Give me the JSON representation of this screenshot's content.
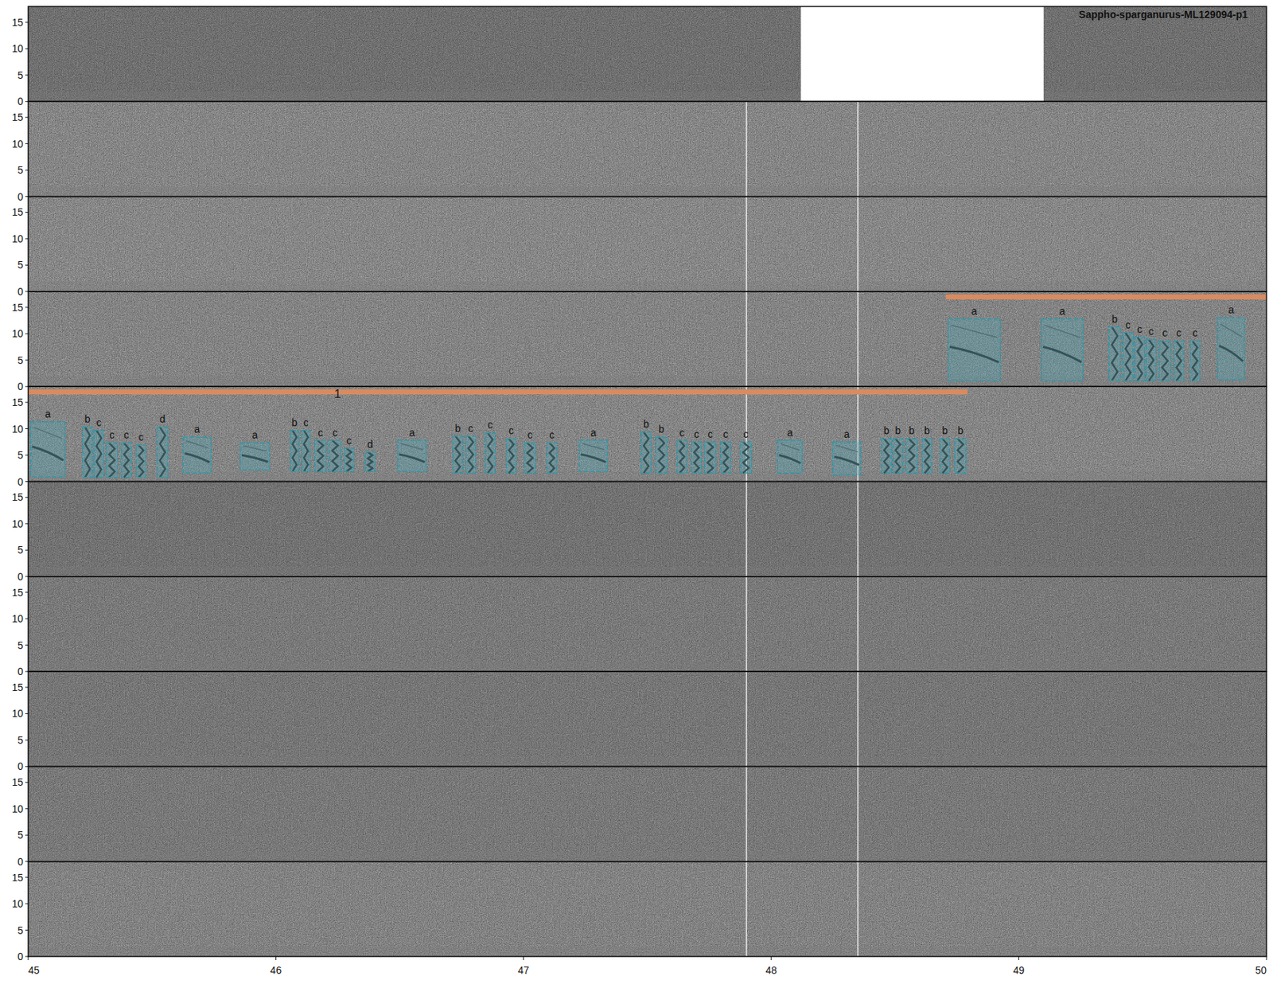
{
  "chart_data": {
    "type": "spectrogram",
    "title": "Sappho-sparganurus-ML129094-p1",
    "rows": 10,
    "xlim": [
      45,
      50
    ],
    "xticks": [
      45,
      46,
      47,
      48,
      49,
      50
    ],
    "ylim": [
      0,
      18
    ],
    "yticks": [
      0,
      5,
      10,
      15
    ],
    "gaps": [
      {
        "row": 0,
        "start": 48.12,
        "end": 49.1
      }
    ],
    "markers": [
      47.9,
      48.35
    ],
    "segments": [
      {
        "label": "1",
        "color": "#d98b5f",
        "pieces": [
          {
            "row": 3,
            "start": 48.705,
            "end": 50
          },
          {
            "row": 4,
            "start": 45,
            "end": 48.793
          }
        ]
      }
    ],
    "annotations": [
      {
        "row": 3,
        "label": "a",
        "start": 48.715,
        "end": 48.925,
        "low": 1.1,
        "high": 12.8
      },
      {
        "row": 3,
        "label": "a",
        "start": 49.092,
        "end": 49.259,
        "low": 1.1,
        "high": 12.8
      },
      {
        "row": 3,
        "label": "b",
        "start": 49.364,
        "end": 49.41,
        "low": 1.1,
        "high": 11.3
      },
      {
        "row": 3,
        "label": "c",
        "start": 49.42,
        "end": 49.462,
        "low": 1.1,
        "high": 10.2
      },
      {
        "row": 3,
        "label": "c",
        "start": 49.469,
        "end": 49.508,
        "low": 1.1,
        "high": 9.4
      },
      {
        "row": 3,
        "label": "c",
        "start": 49.515,
        "end": 49.554,
        "low": 1.1,
        "high": 8.9
      },
      {
        "row": 3,
        "label": "c",
        "start": 49.567,
        "end": 49.613,
        "low": 1.1,
        "high": 8.6
      },
      {
        "row": 3,
        "label": "c",
        "start": 49.626,
        "end": 49.666,
        "low": 1.1,
        "high": 8.6
      },
      {
        "row": 3,
        "label": "c",
        "start": 49.692,
        "end": 49.731,
        "low": 1.1,
        "high": 8.6
      },
      {
        "row": 3,
        "label": "a",
        "start": 49.803,
        "end": 49.911,
        "low": 1.25,
        "high": 13.0
      },
      {
        "row": 4,
        "label": "a",
        "start": 45.01,
        "end": 45.148,
        "low": 0.9,
        "high": 11.3
      },
      {
        "row": 4,
        "label": "b",
        "start": 45.22,
        "end": 45.259,
        "low": 0.8,
        "high": 10.3
      },
      {
        "row": 4,
        "label": "c",
        "start": 45.266,
        "end": 45.305,
        "low": 0.8,
        "high": 9.7
      },
      {
        "row": 4,
        "label": "c",
        "start": 45.315,
        "end": 45.361,
        "low": 0.8,
        "high": 7.3
      },
      {
        "row": 4,
        "label": "c",
        "start": 45.377,
        "end": 45.416,
        "low": 0.8,
        "high": 7.3
      },
      {
        "row": 4,
        "label": "c",
        "start": 45.436,
        "end": 45.475,
        "low": 0.8,
        "high": 6.9
      },
      {
        "row": 4,
        "label": "d",
        "start": 45.521,
        "end": 45.564,
        "low": 0.8,
        "high": 10.3
      },
      {
        "row": 4,
        "label": "a",
        "start": 45.626,
        "end": 45.738,
        "low": 1.6,
        "high": 8.4
      },
      {
        "row": 4,
        "label": "a",
        "start": 45.856,
        "end": 45.974,
        "low": 2.2,
        "high": 7.3
      },
      {
        "row": 4,
        "label": "b",
        "start": 46.059,
        "end": 46.092,
        "low": 1.9,
        "high": 9.7
      },
      {
        "row": 4,
        "label": "c",
        "start": 46.105,
        "end": 46.138,
        "low": 1.9,
        "high": 9.7
      },
      {
        "row": 4,
        "label": "c",
        "start": 46.157,
        "end": 46.203,
        "low": 1.9,
        "high": 7.8
      },
      {
        "row": 4,
        "label": "c",
        "start": 46.216,
        "end": 46.262,
        "low": 1.9,
        "high": 7.8
      },
      {
        "row": 4,
        "label": "c",
        "start": 46.275,
        "end": 46.315,
        "low": 1.9,
        "high": 6.3
      },
      {
        "row": 4,
        "label": "d",
        "start": 46.361,
        "end": 46.4,
        "low": 1.9,
        "high": 5.6
      },
      {
        "row": 4,
        "label": "a",
        "start": 46.492,
        "end": 46.607,
        "low": 1.9,
        "high": 7.8
      },
      {
        "row": 4,
        "label": "b",
        "start": 46.715,
        "end": 46.754,
        "low": 1.6,
        "high": 8.6
      },
      {
        "row": 4,
        "label": "c",
        "start": 46.767,
        "end": 46.807,
        "low": 1.6,
        "high": 8.6
      },
      {
        "row": 4,
        "label": "c",
        "start": 46.846,
        "end": 46.885,
        "low": 1.6,
        "high": 9.2
      },
      {
        "row": 4,
        "label": "c",
        "start": 46.931,
        "end": 46.97,
        "low": 1.6,
        "high": 8.1
      },
      {
        "row": 4,
        "label": "c",
        "start": 47.003,
        "end": 47.049,
        "low": 1.6,
        "high": 7.3
      },
      {
        "row": 4,
        "label": "c",
        "start": 47.095,
        "end": 47.134,
        "low": 1.6,
        "high": 7.3
      },
      {
        "row": 4,
        "label": "a",
        "start": 47.226,
        "end": 47.338,
        "low": 1.9,
        "high": 7.8
      },
      {
        "row": 4,
        "label": "b",
        "start": 47.475,
        "end": 47.515,
        "low": 1.6,
        "high": 9.4
      },
      {
        "row": 4,
        "label": "b",
        "start": 47.534,
        "end": 47.58,
        "low": 1.6,
        "high": 8.4
      },
      {
        "row": 4,
        "label": "c",
        "start": 47.62,
        "end": 47.659,
        "low": 1.6,
        "high": 7.8
      },
      {
        "row": 4,
        "label": "c",
        "start": 47.679,
        "end": 47.718,
        "low": 1.6,
        "high": 7.5
      },
      {
        "row": 4,
        "label": "c",
        "start": 47.731,
        "end": 47.777,
        "low": 1.6,
        "high": 7.5
      },
      {
        "row": 4,
        "label": "c",
        "start": 47.797,
        "end": 47.836,
        "low": 1.6,
        "high": 7.5
      },
      {
        "row": 4,
        "label": "c",
        "start": 47.875,
        "end": 47.921,
        "low": 1.6,
        "high": 7.5
      },
      {
        "row": 4,
        "label": "a",
        "start": 48.026,
        "end": 48.125,
        "low": 1.6,
        "high": 7.8
      },
      {
        "row": 4,
        "label": "a",
        "start": 48.249,
        "end": 48.361,
        "low": 1.25,
        "high": 7.5
      },
      {
        "row": 4,
        "label": "b",
        "start": 48.446,
        "end": 48.485,
        "low": 1.6,
        "high": 8.1
      },
      {
        "row": 4,
        "label": "b",
        "start": 48.492,
        "end": 48.531,
        "low": 1.6,
        "high": 8.1
      },
      {
        "row": 4,
        "label": "b",
        "start": 48.544,
        "end": 48.59,
        "low": 1.6,
        "high": 8.1
      },
      {
        "row": 4,
        "label": "b",
        "start": 48.61,
        "end": 48.649,
        "low": 1.6,
        "high": 8.1
      },
      {
        "row": 4,
        "label": "b",
        "start": 48.682,
        "end": 48.721,
        "low": 1.6,
        "high": 8.1
      },
      {
        "row": 4,
        "label": "b",
        "start": 48.741,
        "end": 48.787,
        "low": 1.6,
        "high": 8.1
      }
    ]
  }
}
